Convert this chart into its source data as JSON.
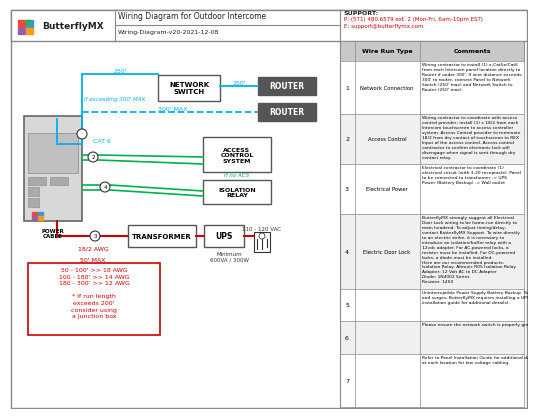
{
  "title": "Wiring Diagram for Outdoor Intercome",
  "subtitle": "Wiring-Diagram-v20-2021-12-08",
  "support_title": "SUPPORT:",
  "support_phone": "P: (571) 480.6579 ext. 2 (Mon-Fri, 6am-10pm EST)",
  "support_email": "E: support@butterflymx.com",
  "bg": "#ffffff",
  "cyan": "#00b0f0",
  "green": "#00b050",
  "red": "#cc0000",
  "logo_red": "#e74c3c",
  "logo_purple": "#9b59b6",
  "logo_blue": "#3498db",
  "logo_orange": "#f39c12",
  "logo_green": "#27ae60",
  "tbl_hdr": "#c8c8c8",
  "tbl_odd": "#ffffff",
  "tbl_even": "#f0f0f0",
  "rows": [
    {
      "n": "1",
      "type": "Network Connection",
      "comment": "Wiring contractor to install (1) x-Cat5e/Cat6\nfrom each Intercom panel location directly to\nRouter if under 300'. If wire distance exceeds\n300' to router, connect Panel to Network\nSwitch (250' max) and Network Switch to\nRouter (250' max)."
    },
    {
      "n": "2",
      "type": "Access Control",
      "comment": "Wiring contractor to coordinate with access\ncontrol provider, install (1) x 18/2 from each\nIntercom touchscreen to access controller\nsystem. Access Control provider to terminate\n18/2 from dry contact of touchscreen to REX\nInput of the access control. Access control\ncontractor to confirm electronic lock will\ndisengage when signal is sent through dry\ncontact relay."
    },
    {
      "n": "3",
      "type": "Electrical Power",
      "comment": "Electrical contractor to coordinate (1)\nelectrical circuit (with 3-20 receptacle). Panel\nto be connected to transformer -> UPS\nPower (Battery Backup) -> Wall outlet"
    },
    {
      "n": "4",
      "type": "Electric Door Lock",
      "comment": "ButterflyMX strongly suggest all Electrical\nDoor Lock wiring to be home-run directly to\nmain headend. To adjust timing/delay,\ncontact ButterflyMX Support. To wire directly\nto an electric strike, it is necessary to\nintroduce an isolation/buffer relay with a\n12vdc adapter. For AC-powered locks, a\nresistor must be installed. For DC-powered\nlocks, a diode must be installed.\nHere are our recommended products:\nIsolation Relay: Altronic R05 Isolation Relay\nAdapter: 12 Volt AC to DC Adapter\nDiode: 1N4002 Series\nResistor: 1450"
    },
    {
      "n": "5",
      "type": "",
      "comment": "Uninterruptible Power Supply Battery Backup. To prevent voltage drops\nand surges, ButterflyMX requires installing a UPS device (see panel\ninstallation guide for additional details)."
    },
    {
      "n": "6",
      "type": "",
      "comment": "Please ensure the network switch is properly grounded."
    },
    {
      "n": "7",
      "type": "",
      "comment": "Refer to Panel Installation Guide for additional details. Leave 6' service loop\nat each location for low voltage cabling."
    }
  ],
  "row_ytops": [
    348,
    295,
    245,
    195,
    120,
    88,
    55
  ],
  "row_ybot": 2
}
